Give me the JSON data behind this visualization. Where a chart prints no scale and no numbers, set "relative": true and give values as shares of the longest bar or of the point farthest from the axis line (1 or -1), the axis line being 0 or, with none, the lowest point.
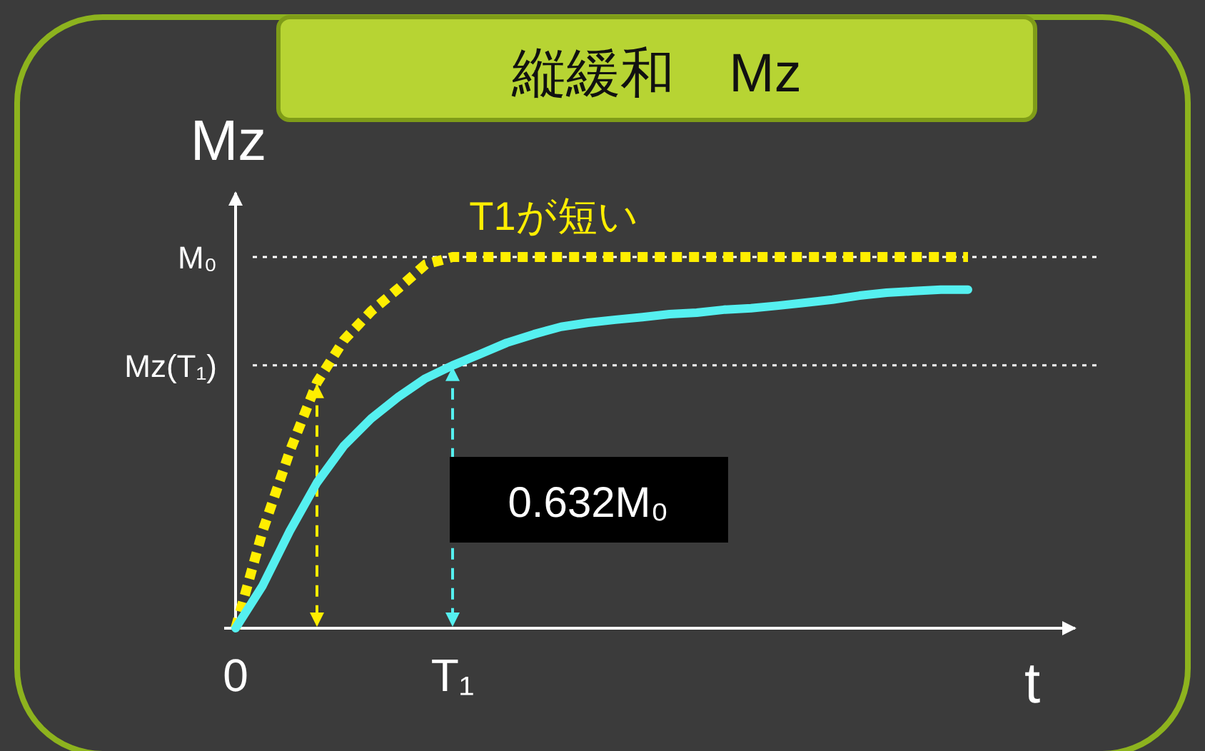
{
  "chart_data": {
    "type": "line",
    "title": "縦緩和　Mz",
    "ylabel": "Mz",
    "xlabel": "t",
    "relative": true,
    "categories": [
      "0",
      null,
      null,
      null,
      null,
      null,
      null,
      null,
      "T₁",
      null,
      null,
      null,
      null,
      null,
      null,
      null,
      null,
      null,
      null,
      null,
      null,
      null,
      null,
      null,
      null,
      null,
      null,
      null
    ],
    "series": [
      {
        "name": "T1が短い",
        "color": "#ffee00",
        "line_style": "dotted",
        "values": [
          0,
          0.262,
          0.477,
          0.662,
          0.777,
          0.854,
          0.915,
          0.98,
          1,
          1,
          1,
          1,
          1,
          1,
          1,
          1,
          1,
          1,
          1,
          1,
          1,
          1,
          1,
          1,
          1,
          1,
          1,
          1
        ]
      },
      {
        "color": "#55f0f0",
        "line_style": "solid",
        "values": [
          0,
          0.115,
          0.262,
          0.392,
          0.492,
          0.565,
          0.623,
          0.673,
          0.708,
          0.738,
          0.769,
          0.792,
          0.812,
          0.823,
          0.831,
          0.838,
          0.846,
          0.85,
          0.858,
          0.862,
          0.869,
          0.877,
          0.885,
          0.896,
          0.904,
          0.908,
          0.912,
          0.912
        ]
      }
    ],
    "ref_lines": [
      {
        "axis": "y",
        "value": 1,
        "label": "M₀",
        "color": "#ffffff",
        "line_style": "dotted"
      },
      {
        "axis": "y",
        "value": 0.708,
        "label": "Mz(T₁)",
        "color": "#ffffff",
        "line_style": "dotted"
      }
    ],
    "annotations": [
      "0.632M₀"
    ]
  }
}
